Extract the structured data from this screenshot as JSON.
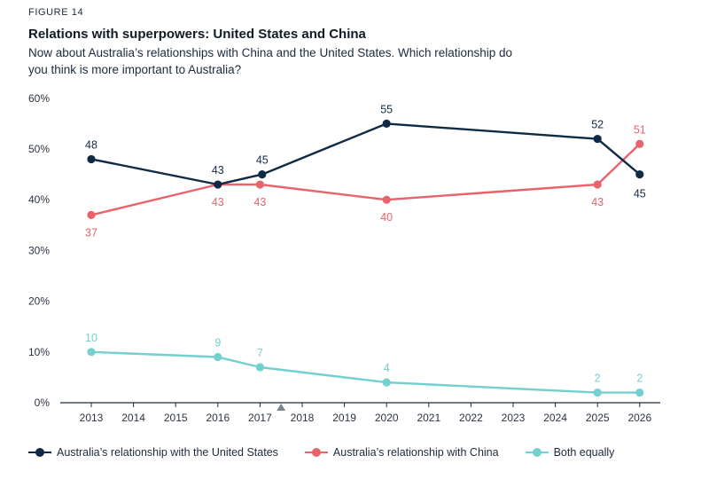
{
  "figure_label": "FIGURE 14",
  "title": "Relations with superpowers: United States and China",
  "subtitle": "Now about Australia’s relationships with China and the United States. Which relationship do you think is more important to Australia?",
  "colors": {
    "us": "#0f2a45",
    "china": "#e8636a",
    "both": "#74cfcf",
    "axis": "#1c2b3c",
    "grid_text": "#2b3440",
    "marker": "#7a8590"
  },
  "chart_data": {
    "type": "line",
    "x_categories": [
      "2013",
      "2014",
      "2015",
      "2016",
      "2017",
      "2018",
      "2019",
      "2020",
      "2021",
      "2022",
      "2023",
      "2024",
      "2025",
      "2026"
    ],
    "y_ticks": [
      "0%",
      "10%",
      "20%",
      "30%",
      "40%",
      "50%",
      "60%"
    ],
    "ylim": [
      0,
      60
    ],
    "grid": false,
    "legend_position": "bottom",
    "xlabel": "",
    "ylabel": "",
    "break_marker_between": [
      "2017",
      "2018"
    ],
    "series": [
      {
        "name": "Australia’s relationship with the United States",
        "color_key": "us",
        "points": [
          {
            "x": 2013,
            "y": 48,
            "label": "48"
          },
          {
            "x": 2016,
            "y": 43,
            "label": "43"
          },
          {
            "x": 2017.05,
            "y": 45,
            "label": "45"
          },
          {
            "x": 2020,
            "y": 55,
            "label": "55"
          },
          {
            "x": 2025,
            "y": 52,
            "label": "52"
          },
          {
            "x": 2026,
            "y": 45,
            "label": "45"
          }
        ]
      },
      {
        "name": "Australia’s relationship with China",
        "color_key": "china",
        "points": [
          {
            "x": 2013,
            "y": 37,
            "label": "37"
          },
          {
            "x": 2016,
            "y": 43,
            "label": "43"
          },
          {
            "x": 2017,
            "y": 43,
            "label": "43"
          },
          {
            "x": 2020,
            "y": 40,
            "label": "40"
          },
          {
            "x": 2025,
            "y": 43,
            "label": "43"
          },
          {
            "x": 2026,
            "y": 51,
            "label": "51"
          }
        ]
      },
      {
        "name": "Both equally",
        "color_key": "both",
        "points": [
          {
            "x": 2013,
            "y": 10,
            "label": "10"
          },
          {
            "x": 2016,
            "y": 9,
            "label": "9"
          },
          {
            "x": 2017,
            "y": 7,
            "label": "7"
          },
          {
            "x": 2020,
            "y": 4,
            "label": "4"
          },
          {
            "x": 2025,
            "y": 2,
            "label": "2"
          },
          {
            "x": 2026,
            "y": 2,
            "label": "2"
          }
        ]
      }
    ]
  }
}
